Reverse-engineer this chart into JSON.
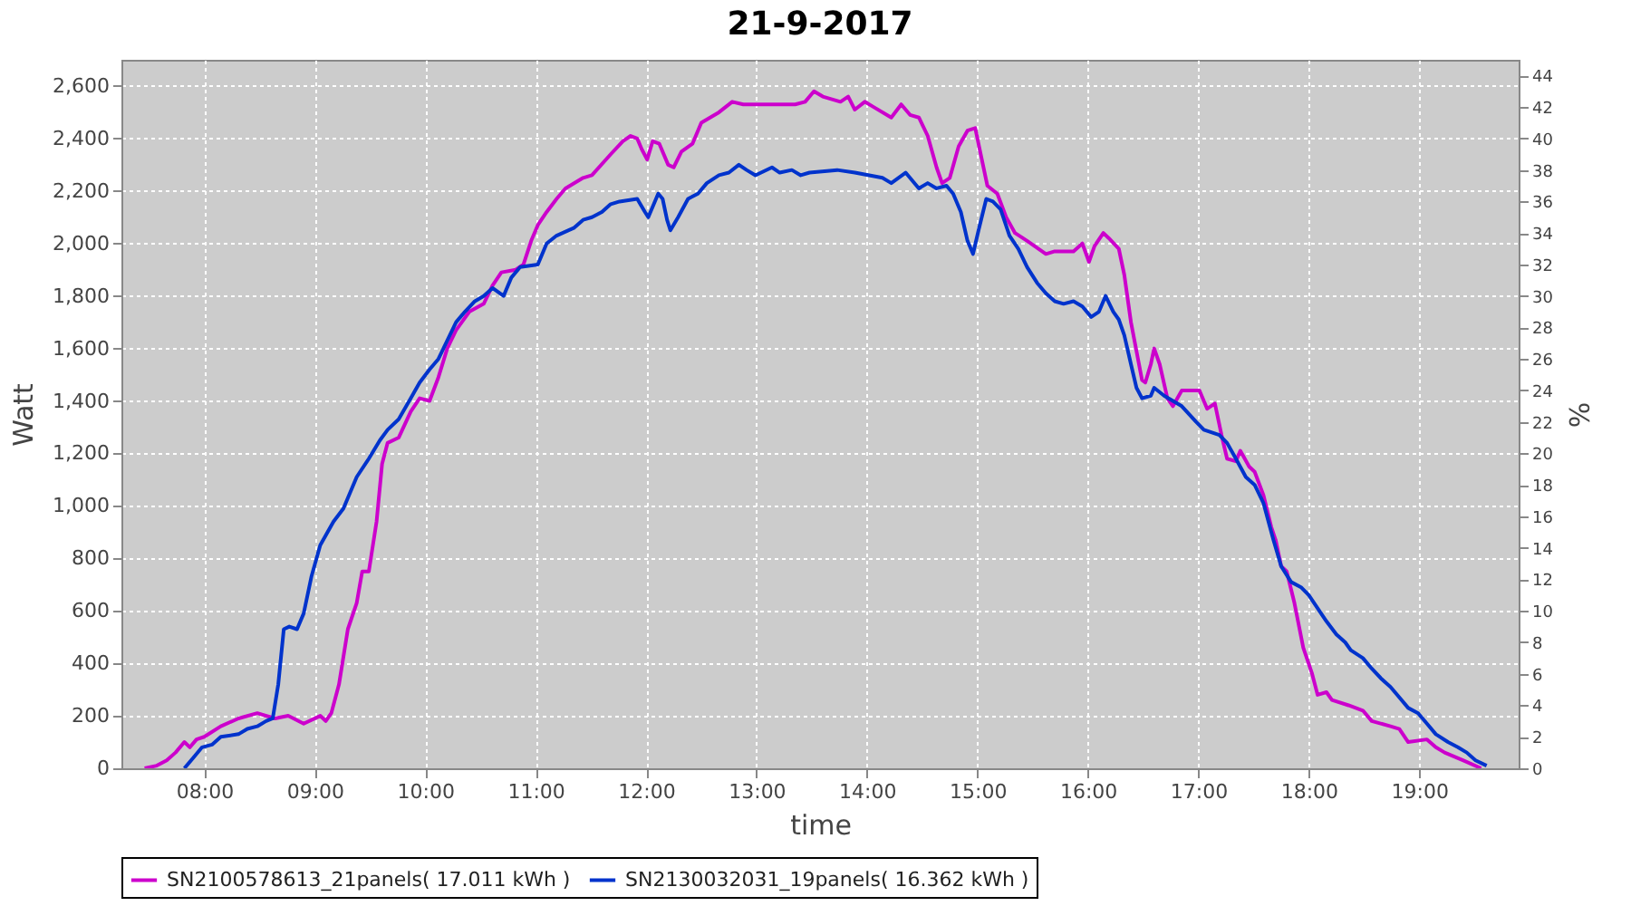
{
  "chart_data": {
    "type": "line",
    "title": "21-9-2017",
    "xlabel": "time",
    "ylabel": "Watt",
    "y2label": "%",
    "xlim": [
      7.25,
      19.9
    ],
    "xticks": [
      {
        "value": 8,
        "label": "08:00"
      },
      {
        "value": 9,
        "label": "09:00"
      },
      {
        "value": 10,
        "label": "10:00"
      },
      {
        "value": 11,
        "label": "11:00"
      },
      {
        "value": 12,
        "label": "12:00"
      },
      {
        "value": 13,
        "label": "13:00"
      },
      {
        "value": 14,
        "label": "14:00"
      },
      {
        "value": 15,
        "label": "15:00"
      },
      {
        "value": 16,
        "label": "16:00"
      },
      {
        "value": 17,
        "label": "17:00"
      },
      {
        "value": 18,
        "label": "18:00"
      },
      {
        "value": 19,
        "label": "19:00"
      }
    ],
    "ylim": [
      0,
      2700
    ],
    "yticks": [
      0,
      200,
      400,
      600,
      800,
      {
        "value": 1000,
        "label": "1,000"
      },
      {
        "value": 1200,
        "label": "1,200"
      },
      {
        "value": 1400,
        "label": "1,400"
      },
      {
        "value": 1600,
        "label": "1,600"
      },
      {
        "value": 1800,
        "label": "1,800"
      },
      {
        "value": 2000,
        "label": "2,000"
      },
      {
        "value": 2200,
        "label": "2,200"
      },
      {
        "value": 2400,
        "label": "2,400"
      },
      {
        "value": 2600,
        "label": "2,600"
      }
    ],
    "y2lim": [
      0,
      45
    ],
    "y2ticks": [
      0,
      2,
      4,
      6,
      8,
      10,
      12,
      14,
      16,
      18,
      20,
      22,
      24,
      26,
      28,
      30,
      32,
      34,
      36,
      38,
      40,
      42,
      44
    ],
    "grid": true,
    "legend": "bottom",
    "series": [
      {
        "name": "SN2100578613_21panels( 17.011 kWh )",
        "color": "#cc00cc",
        "x": [
          7.46,
          7.57,
          7.66,
          7.74,
          7.82,
          7.87,
          7.93,
          8.0,
          8.15,
          8.31,
          8.48,
          8.64,
          8.76,
          8.9,
          9.05,
          9.1,
          9.15,
          9.22,
          9.3,
          9.38,
          9.43,
          9.49,
          9.56,
          9.61,
          9.66,
          9.76,
          9.87,
          9.95,
          10.04,
          10.12,
          10.2,
          10.28,
          10.4,
          10.53,
          10.61,
          10.69,
          10.82,
          10.89,
          10.96,
          11.02,
          11.1,
          11.19,
          11.27,
          11.43,
          11.51,
          11.68,
          11.79,
          11.86,
          11.92,
          11.96,
          12.01,
          12.06,
          12.12,
          12.2,
          12.25,
          12.32,
          12.42,
          12.5,
          12.66,
          12.78,
          12.88,
          13.16,
          13.35,
          13.44,
          13.52,
          13.6,
          13.76,
          13.83,
          13.89,
          13.98,
          14.06,
          14.22,
          14.31,
          14.39,
          14.47,
          14.55,
          14.63,
          14.68,
          14.75,
          14.83,
          14.91,
          14.98,
          15.04,
          15.09,
          15.18,
          15.26,
          15.34,
          15.45,
          15.62,
          15.7,
          15.87,
          15.95,
          16.01,
          16.06,
          16.14,
          16.19,
          16.28,
          16.33,
          16.39,
          16.49,
          16.52,
          16.57,
          16.6,
          16.65,
          16.72,
          16.77,
          16.85,
          17.01,
          17.08,
          17.15,
          17.21,
          17.26,
          17.34,
          17.38,
          17.46,
          17.51,
          17.59,
          17.66,
          17.7,
          17.75,
          17.8,
          17.87,
          17.95,
          18.03,
          18.08,
          18.16,
          18.21,
          18.36,
          18.49,
          18.57,
          18.74,
          18.82,
          18.9,
          19.07,
          19.15,
          19.23,
          19.4,
          19.56
        ],
        "values": [
          0,
          10,
          30,
          60,
          100,
          80,
          110,
          120,
          160,
          190,
          210,
          190,
          200,
          170,
          200,
          180,
          210,
          320,
          530,
          630,
          750,
          750,
          940,
          1160,
          1240,
          1260,
          1360,
          1410,
          1400,
          1490,
          1600,
          1670,
          1740,
          1770,
          1840,
          1890,
          1900,
          1920,
          2010,
          2070,
          2120,
          2170,
          2210,
          2250,
          2260,
          2340,
          2390,
          2410,
          2400,
          2360,
          2320,
          2390,
          2380,
          2300,
          2290,
          2350,
          2380,
          2460,
          2500,
          2540,
          2530,
          2530,
          2530,
          2540,
          2580,
          2560,
          2540,
          2560,
          2510,
          2540,
          2520,
          2480,
          2530,
          2490,
          2480,
          2410,
          2290,
          2230,
          2250,
          2370,
          2430,
          2440,
          2320,
          2220,
          2190,
          2100,
          2040,
          2010,
          1960,
          1970,
          1970,
          2000,
          1930,
          1990,
          2040,
          2020,
          1980,
          1880,
          1700,
          1480,
          1470,
          1540,
          1600,
          1540,
          1410,
          1380,
          1440,
          1440,
          1370,
          1390,
          1270,
          1180,
          1170,
          1210,
          1150,
          1130,
          1040,
          920,
          870,
          770,
          750,
          630,
          460,
          360,
          280,
          290,
          260,
          240,
          220,
          180,
          160,
          150,
          100,
          110,
          80,
          60,
          30,
          0
        ]
      },
      {
        "name": "SN2130032031_19panels( 16.362 kWh )",
        "color": "#0033cc",
        "x": [
          7.82,
          7.9,
          7.98,
          8.07,
          8.15,
          8.31,
          8.39,
          8.48,
          8.56,
          8.62,
          8.67,
          8.72,
          8.77,
          8.84,
          8.9,
          8.97,
          9.05,
          9.17,
          9.26,
          9.38,
          9.49,
          9.59,
          9.66,
          9.76,
          9.87,
          9.95,
          10.04,
          10.12,
          10.2,
          10.28,
          10.36,
          10.45,
          10.53,
          10.61,
          10.71,
          10.78,
          10.86,
          11.02,
          11.1,
          11.19,
          11.35,
          11.43,
          11.51,
          11.6,
          11.68,
          11.76,
          11.92,
          11.99,
          12.02,
          12.11,
          12.15,
          12.19,
          12.22,
          12.29,
          12.38,
          12.47,
          12.55,
          12.66,
          12.75,
          12.84,
          12.91,
          12.99,
          13.14,
          13.21,
          13.32,
          13.4,
          13.48,
          13.73,
          13.89,
          14.14,
          14.22,
          14.35,
          14.47,
          14.55,
          14.63,
          14.72,
          14.78,
          14.85,
          14.91,
          14.96,
          15.01,
          15.08,
          15.14,
          15.21,
          15.29,
          15.37,
          15.45,
          15.54,
          15.62,
          15.7,
          15.78,
          15.87,
          15.95,
          16.03,
          16.1,
          16.16,
          16.23,
          16.28,
          16.33,
          16.39,
          16.44,
          16.49,
          16.57,
          16.6,
          16.69,
          16.77,
          16.85,
          16.98,
          17.05,
          17.19,
          17.26,
          17.34,
          17.43,
          17.51,
          17.59,
          17.68,
          17.75,
          17.84,
          17.93,
          18.0,
          18.08,
          18.16,
          18.25,
          18.33,
          18.38,
          18.49,
          18.57,
          18.66,
          18.74,
          18.82,
          18.9,
          18.99,
          19.07,
          19.15,
          19.26,
          19.35,
          19.43,
          19.51,
          19.61
        ],
        "values": [
          0,
          40,
          80,
          90,
          120,
          130,
          150,
          160,
          180,
          190,
          320,
          530,
          540,
          530,
          590,
          730,
          850,
          940,
          990,
          1110,
          1180,
          1250,
          1290,
          1330,
          1410,
          1470,
          1520,
          1560,
          1630,
          1700,
          1740,
          1780,
          1800,
          1830,
          1800,
          1870,
          1910,
          1920,
          2000,
          2030,
          2060,
          2090,
          2100,
          2120,
          2150,
          2160,
          2170,
          2120,
          2100,
          2190,
          2170,
          2090,
          2050,
          2100,
          2170,
          2190,
          2230,
          2260,
          2270,
          2300,
          2280,
          2260,
          2290,
          2270,
          2280,
          2260,
          2270,
          2280,
          2270,
          2250,
          2230,
          2270,
          2210,
          2230,
          2210,
          2220,
          2190,
          2120,
          2010,
          1960,
          2050,
          2170,
          2160,
          2130,
          2030,
          1980,
          1910,
          1850,
          1810,
          1780,
          1770,
          1780,
          1760,
          1720,
          1740,
          1800,
          1740,
          1710,
          1650,
          1540,
          1450,
          1410,
          1420,
          1450,
          1420,
          1400,
          1380,
          1320,
          1290,
          1270,
          1240,
          1180,
          1110,
          1080,
          1010,
          870,
          770,
          710,
          690,
          660,
          610,
          560,
          510,
          480,
          450,
          420,
          380,
          340,
          310,
          270,
          230,
          210,
          170,
          130,
          100,
          80,
          60,
          30,
          10
        ]
      }
    ]
  }
}
